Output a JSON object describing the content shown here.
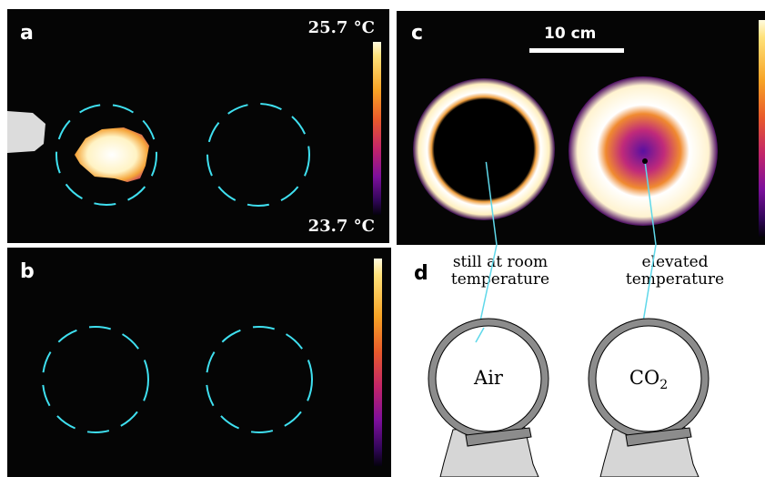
{
  "panel_a": {
    "label": "a",
    "temp_max": "25.7 °C",
    "temp_min": "23.7 °C"
  },
  "panel_b": {
    "label": "b"
  },
  "panel_c": {
    "label": "c",
    "scale_label": "10 cm"
  },
  "panel_d": {
    "label": "d",
    "left_annotation_line1": "still at room",
    "left_annotation_line2": "temperature",
    "right_annotation_line1": "elevated",
    "right_annotation_line2": "temperature",
    "left_gas": "Air",
    "right_gas_base": "CO",
    "right_gas_sub": "2"
  },
  "colors": {
    "outline_dash": "#3fe0f0",
    "pointer_line": "#5fd8ea",
    "tube_gray": "#8c8c8c",
    "holder_fill": "#d6d6d6"
  }
}
